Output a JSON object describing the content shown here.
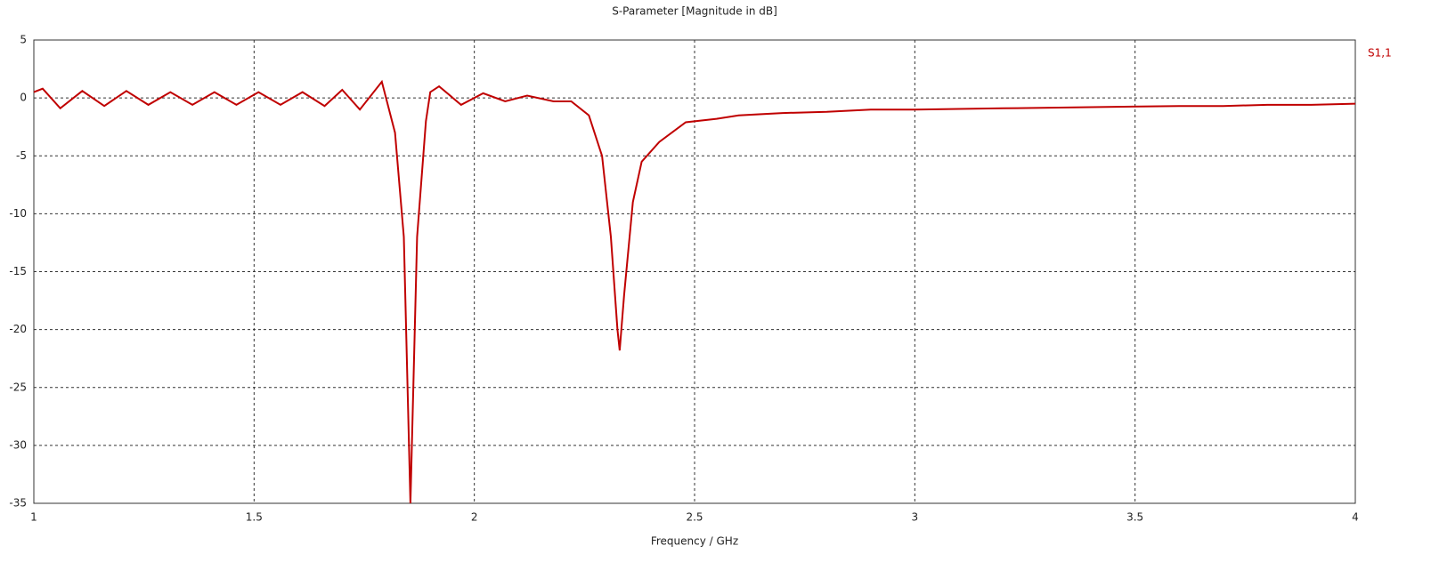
{
  "chart_data": {
    "type": "line",
    "title": "S-Parameter [Magnitude in dB]",
    "x_label": "Frequency / GHz",
    "x": [
      1.0,
      1.02,
      1.06,
      1.11,
      1.16,
      1.21,
      1.26,
      1.31,
      1.36,
      1.41,
      1.46,
      1.51,
      1.56,
      1.61,
      1.66,
      1.7,
      1.74,
      1.79,
      1.82,
      1.84,
      1.855,
      1.87,
      1.89,
      1.9,
      1.92,
      1.97,
      2.02,
      2.07,
      2.12,
      2.18,
      2.22,
      2.26,
      2.29,
      2.31,
      2.325,
      2.33,
      2.34,
      2.36,
      2.38,
      2.42,
      2.48,
      2.55,
      2.6,
      2.7,
      2.8,
      2.9,
      3.0,
      3.2,
      3.4,
      3.6,
      3.7,
      3.8,
      3.9,
      4.0
    ],
    "series": [
      {
        "name": "S1,1",
        "color": "#c00000",
        "values": [
          0.5,
          0.8,
          -0.9,
          0.6,
          -0.7,
          0.6,
          -0.6,
          0.5,
          -0.6,
          0.5,
          -0.6,
          0.5,
          -0.6,
          0.5,
          -0.7,
          0.7,
          -1.0,
          1.4,
          -3,
          -12,
          -35,
          -12,
          -2,
          0.5,
          1.0,
          -0.6,
          0.4,
          -0.3,
          0.2,
          -0.3,
          -0.3,
          -1.5,
          -5,
          -12,
          -20,
          -21.8,
          -17,
          -9,
          -5.5,
          -3.8,
          -2.1,
          -1.8,
          -1.5,
          -1.3,
          -1.2,
          -1.0,
          -1.0,
          -0.9,
          -0.8,
          -0.7,
          -0.7,
          -0.6,
          -0.6,
          -0.5
        ]
      }
    ],
    "xlim": [
      1,
      4
    ],
    "xticks": [
      1,
      1.5,
      2,
      2.5,
      3,
      3.5,
      4
    ],
    "ylim": [
      -35,
      5
    ],
    "yticks": [
      5,
      0,
      -5,
      -10,
      -15,
      -20,
      -25,
      -30,
      -35
    ],
    "grid": true
  }
}
